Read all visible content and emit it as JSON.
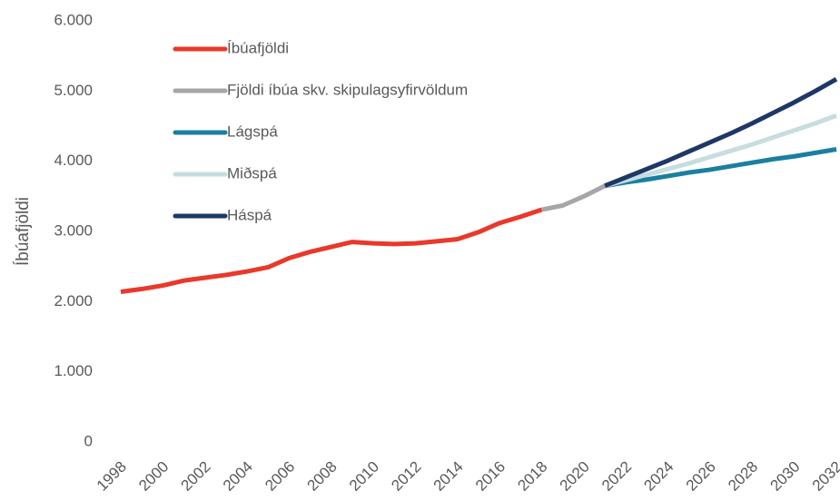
{
  "chart_data": {
    "type": "line",
    "ylabel": "Íbúafjöldi",
    "xlim": [
      1998,
      2032
    ],
    "xticks": [
      1998,
      2000,
      2002,
      2004,
      2006,
      2008,
      2010,
      2012,
      2014,
      2016,
      2018,
      2020,
      2022,
      2024,
      2026,
      2028,
      2030,
      2032
    ],
    "ylim": [
      0,
      6000
    ],
    "yticks": [
      0,
      {
        "value": 1000,
        "label": "1.000"
      },
      {
        "value": 2000,
        "label": "2.000"
      },
      {
        "value": 3000,
        "label": "3.000"
      },
      {
        "value": 4000,
        "label": "4.000"
      },
      {
        "value": 5000,
        "label": "5.000"
      },
      {
        "value": 6000,
        "label": "6.000"
      }
    ],
    "grid": false,
    "legend": "upper left",
    "series": [
      {
        "name": "Íbúafjöldi",
        "color": "#e8392b",
        "x": [
          1998,
          1999,
          2000,
          2001,
          2002,
          2003,
          2004,
          2005,
          2006,
          2007,
          2008,
          2009,
          2010,
          2011,
          2012,
          2013,
          2014,
          2015,
          2016,
          2017,
          2018
        ],
        "values": [
          2140,
          2180,
          2230,
          2300,
          2340,
          2380,
          2430,
          2490,
          2620,
          2710,
          2780,
          2850,
          2830,
          2820,
          2830,
          2860,
          2890,
          2990,
          3120,
          3210,
          3310
        ]
      },
      {
        "name": "Fjöldi íbúa skv. skipulagsyfirvöldum",
        "color": "#a6a6a8",
        "x": [
          2018,
          2019,
          2020,
          2021
        ],
        "values": [
          3310,
          3370,
          3500,
          3650
        ]
      },
      {
        "name": "Lágspá",
        "color": "#1a7fa0",
        "x": [
          2021,
          2022,
          2023,
          2024,
          2025,
          2026,
          2027,
          2028,
          2029,
          2030,
          2031,
          2032
        ],
        "values": [
          3650,
          3700,
          3740,
          3790,
          3840,
          3880,
          3930,
          3980,
          4030,
          4070,
          4120,
          4170
        ]
      },
      {
        "name": "Miðspá",
        "color": "#c7dde0",
        "x": [
          2021,
          2022,
          2023,
          2024,
          2025,
          2026,
          2027,
          2028,
          2029,
          2030,
          2031,
          2032
        ],
        "values": [
          3650,
          3730,
          3810,
          3890,
          3970,
          4060,
          4150,
          4240,
          4340,
          4440,
          4540,
          4650
        ]
      },
      {
        "name": "Háspá",
        "color": "#1d3866",
        "x": [
          2021,
          2022,
          2023,
          2024,
          2025,
          2026,
          2027,
          2028,
          2029,
          2030,
          2031,
          2032
        ],
        "values": [
          3650,
          3770,
          3890,
          4010,
          4140,
          4270,
          4400,
          4540,
          4690,
          4840,
          5000,
          5170
        ]
      }
    ]
  }
}
